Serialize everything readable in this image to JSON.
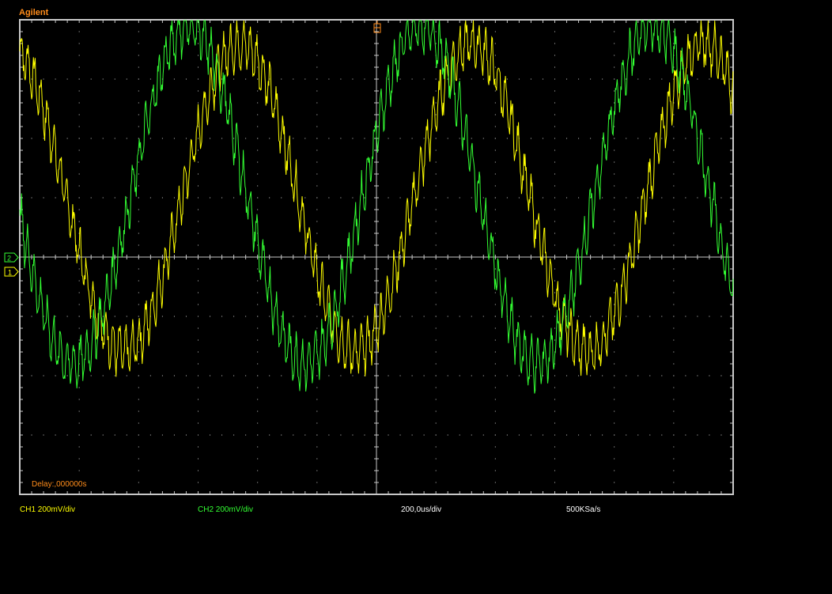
{
  "brand": "Agilent",
  "status": {
    "ch1": "CH1 200mV/div",
    "ch2": "CH2 200mV/div",
    "timebase": "200,0us/div",
    "sample_rate": "500KSa/s"
  },
  "delay": "Delay:,000000s",
  "markers": {
    "ch2": "2",
    "ch1": "1"
  },
  "colors": {
    "ch1": "#ffff00",
    "ch2": "#33ff33",
    "accent": "#ff8c1a",
    "grid": "#c8c8c8"
  },
  "chart_data": {
    "type": "line",
    "title": "",
    "xlabel": "",
    "ylabel": "",
    "x_divisions": 12,
    "y_divisions": 8,
    "grid": true,
    "xlim_us": [
      0,
      2400
    ],
    "series": [
      {
        "name": "CH1",
        "shape": "noisy sine",
        "period_us": 780,
        "min_div": -1.6,
        "max_div": 3.6,
        "phase_frac": 0.3
      },
      {
        "name": "CH2",
        "shape": "noisy sine",
        "period_us": 780,
        "min_div": -1.8,
        "max_div": 3.9,
        "phase_frac": 0.52
      }
    ]
  }
}
